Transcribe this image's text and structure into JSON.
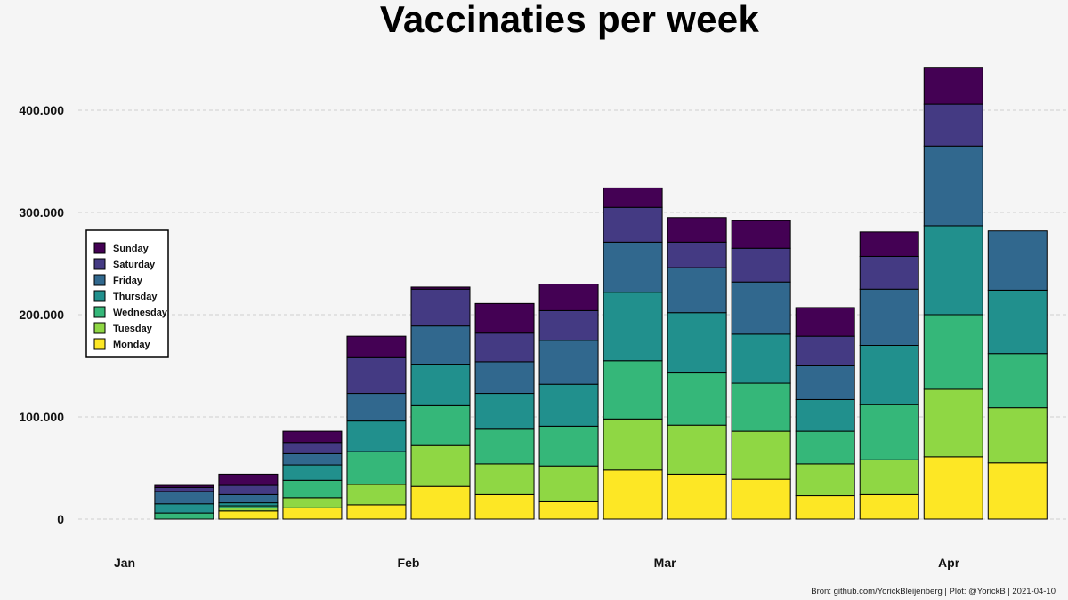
{
  "chart_data": {
    "type": "bar",
    "stacked": true,
    "title": "Vaccinaties per week",
    "xlabel": "",
    "ylabel": "",
    "ylim": [
      -35000,
      450000
    ],
    "yticks": [
      0,
      100000,
      200000,
      300000,
      400000
    ],
    "ytick_labels": [
      "0",
      "100.000",
      "200.000",
      "300.000",
      "400.000"
    ],
    "xtick_labels": [
      "Jan",
      "Feb",
      "Mar",
      "Apr"
    ],
    "grid": "horizontal dashed",
    "legend_position": "left",
    "weeks": [
      "2021-01-04",
      "2021-01-11",
      "2021-01-18",
      "2021-01-25",
      "2021-02-01",
      "2021-02-08",
      "2021-02-15",
      "2021-02-22",
      "2021-03-01",
      "2021-03-08",
      "2021-03-15",
      "2021-03-22",
      "2021-03-29",
      "2021-04-05"
    ],
    "series": [
      {
        "name": "Monday",
        "color": "#fde725",
        "values": [
          0,
          8000,
          11000,
          14000,
          32000,
          24000,
          17000,
          48000,
          44000,
          39000,
          23000,
          24000,
          61000,
          55000
        ]
      },
      {
        "name": "Tuesday",
        "color": "#8fd744",
        "values": [
          0,
          3000,
          10000,
          20000,
          40000,
          30000,
          35000,
          50000,
          48000,
          47000,
          31000,
          34000,
          66000,
          54000
        ]
      },
      {
        "name": "Wednesday",
        "color": "#35b779",
        "values": [
          6000,
          2000,
          17000,
          32000,
          39000,
          34000,
          39000,
          57000,
          51000,
          47000,
          32000,
          54000,
          73000,
          53000
        ]
      },
      {
        "name": "Thursday",
        "color": "#21908d",
        "values": [
          9000,
          3000,
          15000,
          30000,
          40000,
          35000,
          41000,
          67000,
          59000,
          48000,
          31000,
          58000,
          87000,
          62000
        ]
      },
      {
        "name": "Friday",
        "color": "#31688e",
        "values": [
          12000,
          8000,
          11000,
          27000,
          38000,
          31000,
          43000,
          49000,
          44000,
          51000,
          33000,
          55000,
          78000,
          58000
        ]
      },
      {
        "name": "Saturday",
        "color": "#443a83",
        "values": [
          4000,
          9000,
          11000,
          35000,
          36000,
          28000,
          29000,
          34000,
          25000,
          33000,
          29000,
          32000,
          41000,
          0
        ]
      },
      {
        "name": "Sunday",
        "color": "#440154",
        "values": [
          2000,
          11000,
          11000,
          21000,
          2000,
          29000,
          26000,
          19000,
          24000,
          27000,
          28000,
          24000,
          36000,
          0
        ]
      }
    ],
    "caption": "Bron: github.com/YorickBleijenberg | Plot: @YorickB  |  2021-04-10"
  }
}
